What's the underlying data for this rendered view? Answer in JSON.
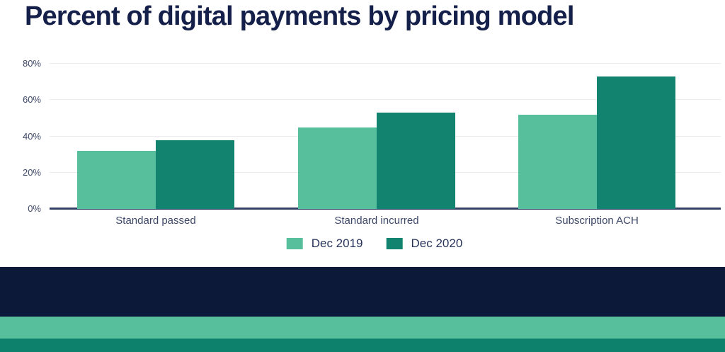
{
  "chart_data": {
    "type": "bar",
    "title": "Percent of digital payments by pricing model",
    "categories": [
      "Standard passed",
      "Standard incurred",
      "Subscription ACH"
    ],
    "series": [
      {
        "name": "Dec 2019",
        "color": "#57BF9B",
        "values": [
          32,
          45,
          52
        ]
      },
      {
        "name": "Dec 2020",
        "color": "#11836F",
        "values": [
          38,
          53,
          73
        ]
      }
    ],
    "ylabel": "",
    "xlabel": "",
    "ylim": [
      0,
      85
    ],
    "yticks": [
      0,
      20,
      40,
      60,
      80
    ],
    "ytick_labels": [
      "0%",
      "20%",
      "40%",
      "60%",
      "80%"
    ],
    "grid": "horizontal",
    "legend_position": "bottom-center"
  },
  "colors": {
    "title": "#14204A",
    "axis_text": "#3D4868",
    "axis_line": "#333F63",
    "gridline": "#ECECEC",
    "series_1": "#57BF9B",
    "series_2": "#11836F",
    "footer_navy": "#0C1938",
    "footer_light_green": "#57BF9B",
    "footer_dark_green": "#0E816C",
    "background": "#FFFFFF"
  }
}
